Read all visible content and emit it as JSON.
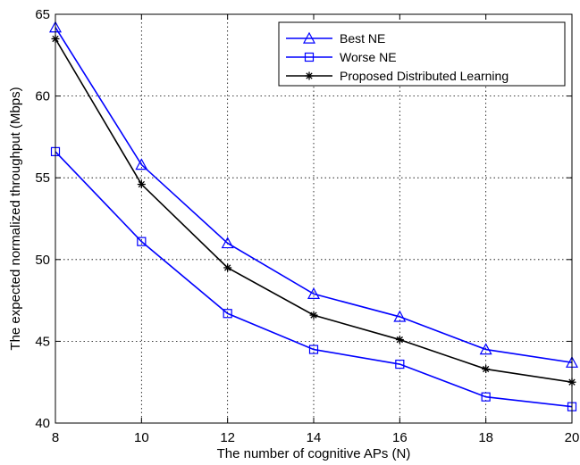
{
  "chart_data": {
    "type": "line",
    "title": "",
    "xlabel": "The number of cognitive APs (N)",
    "ylabel": "The expected normalized throughput (Mbps)",
    "x": [
      8,
      10,
      12,
      14,
      16,
      18,
      20
    ],
    "xlim": [
      8,
      20
    ],
    "ylim": [
      40,
      65
    ],
    "xticks": [
      "8",
      "10",
      "12",
      "14",
      "16",
      "18",
      "20"
    ],
    "yticks": [
      "40",
      "45",
      "50",
      "55",
      "60",
      "65"
    ],
    "grid": true,
    "legend_position": "top-right",
    "series": [
      {
        "name": "Best NE",
        "marker": "triangle",
        "color": "#0000ff",
        "values": [
          64.2,
          55.8,
          51.0,
          47.9,
          46.5,
          44.5,
          43.7
        ]
      },
      {
        "name": "Worse NE",
        "marker": "square",
        "color": "#0000ff",
        "values": [
          56.6,
          51.1,
          46.7,
          44.5,
          43.6,
          41.6,
          41.0
        ]
      },
      {
        "name": "Proposed Distributed Learning",
        "marker": "asterisk",
        "color": "#000000",
        "values": [
          63.5,
          54.6,
          49.5,
          46.6,
          45.1,
          43.3,
          42.5
        ]
      }
    ]
  }
}
